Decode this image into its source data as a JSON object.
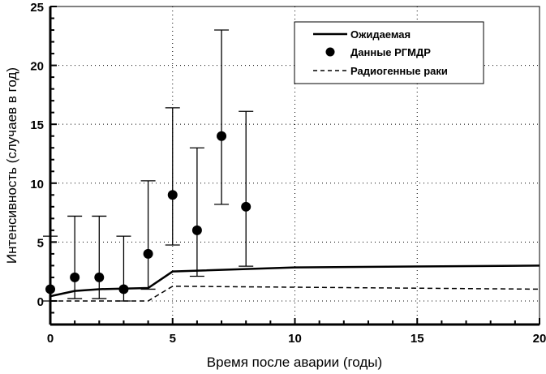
{
  "chart_data": {
    "type": "line",
    "title": "",
    "xlabel": "Время после аварии (годы)",
    "ylabel": "Интенсивность (случаев в год)",
    "xlim": [
      0,
      20
    ],
    "ylim": [
      -2,
      25
    ],
    "xticks": [
      0,
      5,
      10,
      15,
      20
    ],
    "yticks": [
      0,
      5,
      10,
      15,
      20,
      25
    ],
    "grid": true,
    "legend_position": "top-right",
    "series": [
      {
        "name": "Ожидаемая",
        "style": "solid",
        "x": [
          0,
          1,
          2,
          3,
          4,
          5,
          10,
          20
        ],
        "y": [
          0.4,
          0.85,
          1.0,
          1.05,
          1.1,
          2.5,
          2.85,
          3.0
        ]
      },
      {
        "name": "Данные РГМДР",
        "style": "points",
        "x": [
          0,
          1,
          2,
          3,
          4,
          5,
          6,
          7,
          8
        ],
        "y": [
          1,
          2,
          2,
          1,
          4,
          9,
          6,
          14,
          8
        ],
        "err_low": [
          0,
          0.2,
          0.2,
          0,
          1.0,
          4.75,
          2.1,
          8.2,
          2.95
        ],
        "err_high": [
          5.5,
          7.2,
          7.2,
          5.5,
          10.2,
          16.4,
          13,
          23,
          16.1
        ]
      },
      {
        "name": "Радиогенные раки",
        "style": "dashed",
        "x": [
          0,
          4,
          5,
          20
        ],
        "y": [
          0,
          0,
          1.25,
          1.0
        ]
      }
    ]
  }
}
